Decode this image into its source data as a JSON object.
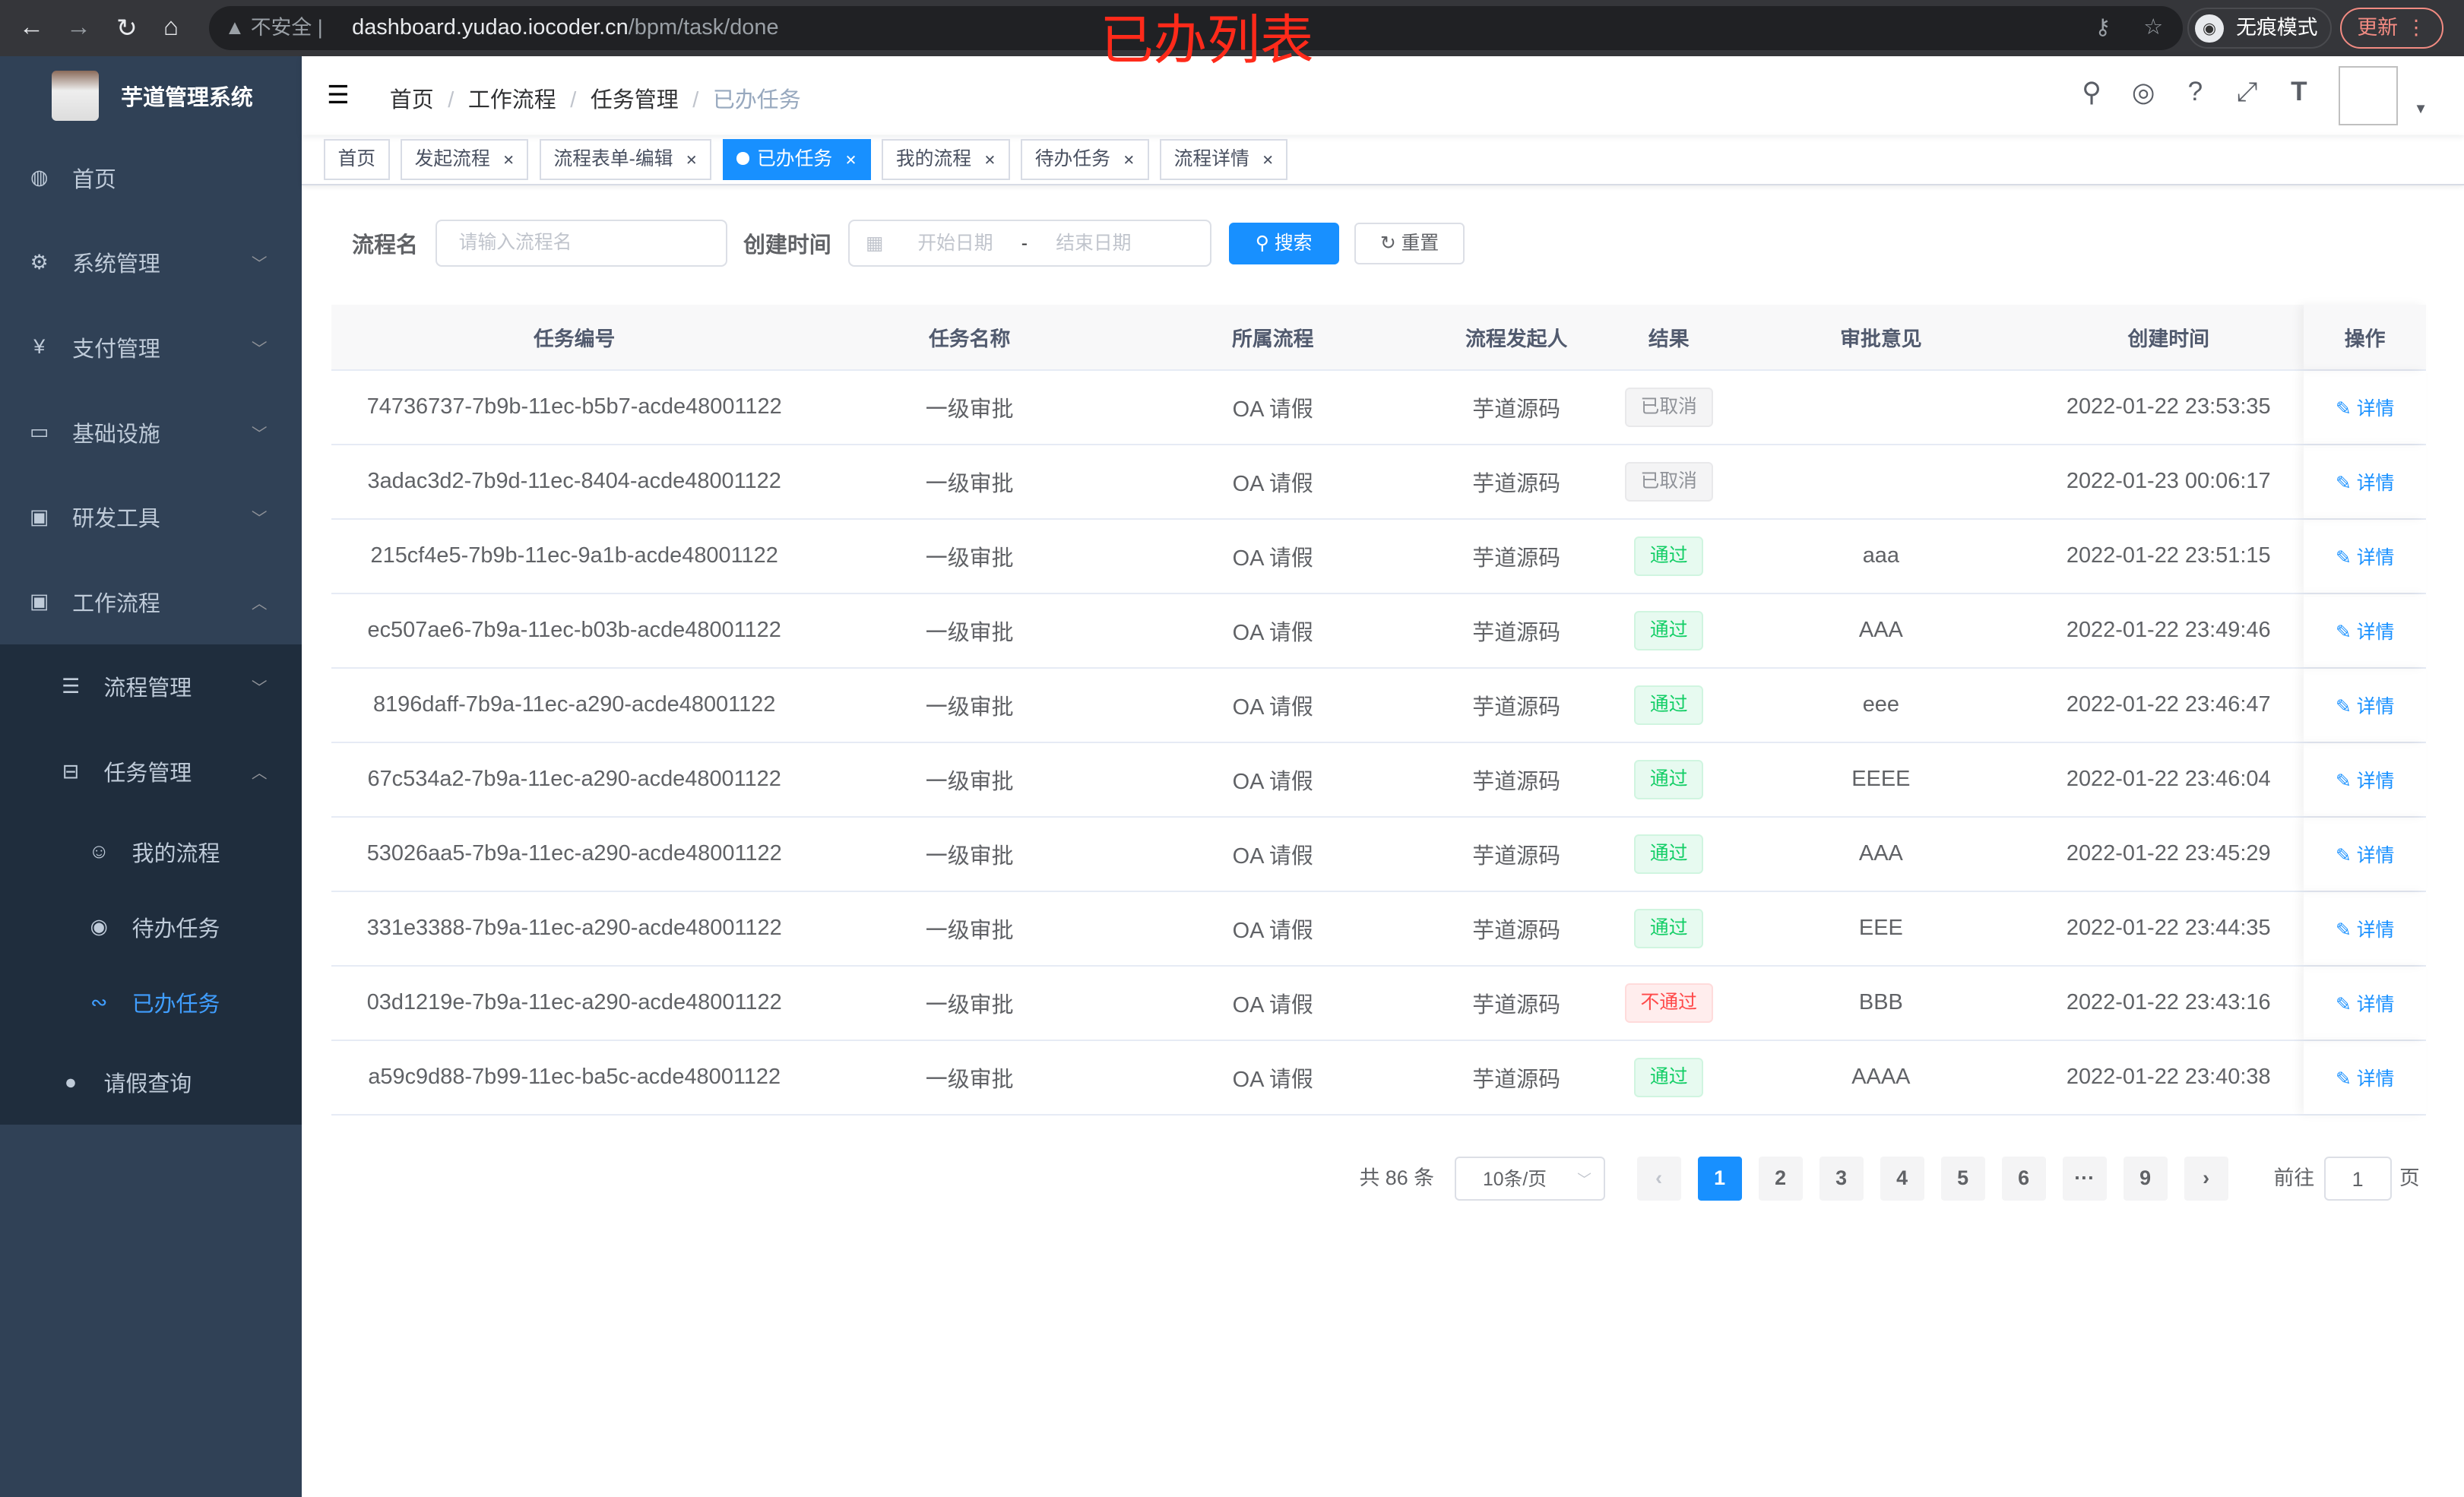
{
  "browser": {
    "url_host": "dashboard.yudao.iocoder.cn",
    "url_path": "/bpm/task/done",
    "security": "不安全",
    "incognito": "无痕模式",
    "update": "更新"
  },
  "overlay_title": "已办列表",
  "sidebar": {
    "app_name": "芋道管理系统",
    "items": [
      {
        "label": "首页",
        "icon": "dashboard-icon"
      },
      {
        "label": "系统管理",
        "icon": "gear-icon"
      },
      {
        "label": "支付管理",
        "icon": "yen-icon"
      },
      {
        "label": "基础设施",
        "icon": "monitor-icon"
      },
      {
        "label": "研发工具",
        "icon": "toolbox-icon"
      },
      {
        "label": "工作流程",
        "icon": "toolbox-icon"
      }
    ],
    "workflow_children": [
      {
        "label": "流程管理",
        "icon": "list-icon"
      },
      {
        "label": "任务管理",
        "icon": "tree-icon"
      }
    ],
    "task_children": [
      {
        "label": "我的流程",
        "icon": "user-icon"
      },
      {
        "label": "待办任务",
        "icon": "eye-icon"
      },
      {
        "label": "已办任务",
        "icon": "done-icon",
        "active": true
      }
    ],
    "leave_query": {
      "label": "请假查询",
      "icon": "person-icon"
    }
  },
  "breadcrumb": [
    "首页",
    "工作流程",
    "任务管理",
    "已办任务"
  ],
  "tags": [
    {
      "label": "首页"
    },
    {
      "label": "发起流程"
    },
    {
      "label": "流程表单-编辑"
    },
    {
      "label": "已办任务",
      "active": true
    },
    {
      "label": "我的流程"
    },
    {
      "label": "待办任务"
    },
    {
      "label": "流程详情"
    }
  ],
  "search": {
    "name_label": "流程名",
    "name_placeholder": "请输入流程名",
    "time_label": "创建时间",
    "start_placeholder": "开始日期",
    "range_sep": "-",
    "end_placeholder": "结束日期",
    "search_btn": "搜索",
    "reset_btn": "重置"
  },
  "table": {
    "headers": [
      "任务编号",
      "任务名称",
      "所属流程",
      "流程发起人",
      "结果",
      "审批意见",
      "创建时间",
      "操作"
    ],
    "action_label": "详情",
    "rows": [
      {
        "id": "74736737-7b9b-11ec-b5b7-acde48001122",
        "name": "一级审批",
        "process": "OA 请假",
        "starter": "芋道源码",
        "result": "已取消",
        "rtype": "cancel",
        "comment": "",
        "time": "2022-01-22 23:53:35"
      },
      {
        "id": "3adac3d2-7b9d-11ec-8404-acde48001122",
        "name": "一级审批",
        "process": "OA 请假",
        "starter": "芋道源码",
        "result": "已取消",
        "rtype": "cancel",
        "comment": "",
        "time": "2022-01-23 00:06:17"
      },
      {
        "id": "215cf4e5-7b9b-11ec-9a1b-acde48001122",
        "name": "一级审批",
        "process": "OA 请假",
        "starter": "芋道源码",
        "result": "通过",
        "rtype": "pass",
        "comment": "aaa",
        "time": "2022-01-22 23:51:15"
      },
      {
        "id": "ec507ae6-7b9a-11ec-b03b-acde48001122",
        "name": "一级审批",
        "process": "OA 请假",
        "starter": "芋道源码",
        "result": "通过",
        "rtype": "pass",
        "comment": "AAA",
        "time": "2022-01-22 23:49:46"
      },
      {
        "id": "8196daff-7b9a-11ec-a290-acde48001122",
        "name": "一级审批",
        "process": "OA 请假",
        "starter": "芋道源码",
        "result": "通过",
        "rtype": "pass",
        "comment": "eee",
        "time": "2022-01-22 23:46:47"
      },
      {
        "id": "67c534a2-7b9a-11ec-a290-acde48001122",
        "name": "一级审批",
        "process": "OA 请假",
        "starter": "芋道源码",
        "result": "通过",
        "rtype": "pass",
        "comment": "EEEE",
        "time": "2022-01-22 23:46:04"
      },
      {
        "id": "53026aa5-7b9a-11ec-a290-acde48001122",
        "name": "一级审批",
        "process": "OA 请假",
        "starter": "芋道源码",
        "result": "通过",
        "rtype": "pass",
        "comment": "AAA",
        "time": "2022-01-22 23:45:29"
      },
      {
        "id": "331e3388-7b9a-11ec-a290-acde48001122",
        "name": "一级审批",
        "process": "OA 请假",
        "starter": "芋道源码",
        "result": "通过",
        "rtype": "pass",
        "comment": "EEE",
        "time": "2022-01-22 23:44:35"
      },
      {
        "id": "03d1219e-7b9a-11ec-a290-acde48001122",
        "name": "一级审批",
        "process": "OA 请假",
        "starter": "芋道源码",
        "result": "不通过",
        "rtype": "fail",
        "comment": "BBB",
        "time": "2022-01-22 23:43:16"
      },
      {
        "id": "a59c9d88-7b99-11ec-ba5c-acde48001122",
        "name": "一级审批",
        "process": "OA 请假",
        "starter": "芋道源码",
        "result": "通过",
        "rtype": "pass",
        "comment": "AAAA",
        "time": "2022-01-22 23:40:38"
      }
    ]
  },
  "pagination": {
    "total": "共 86 条",
    "page_size": "10条/页",
    "pages": [
      "1",
      "2",
      "3",
      "4",
      "5",
      "6",
      "···",
      "9"
    ],
    "current": "1",
    "goto_label": "前往",
    "goto_value": "1",
    "page_suffix": "页"
  },
  "colors": {
    "sidebar": "#304156",
    "accent": "#1890ff",
    "pass": "#13ce66",
    "fail": "#ff4949"
  }
}
